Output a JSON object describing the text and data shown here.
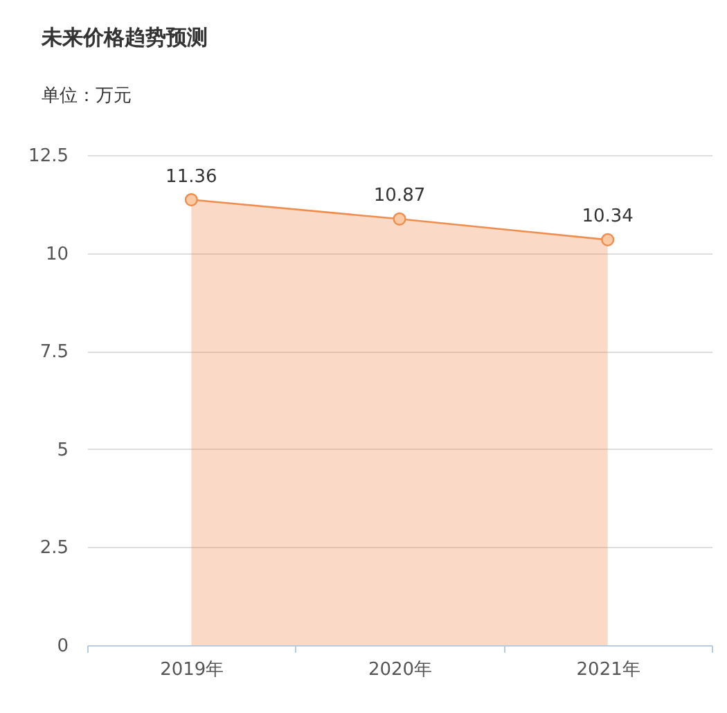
{
  "chart_data": {
    "type": "area",
    "title": "未来价格趋势预测",
    "subtitle": "单位：万元",
    "categories": [
      "2019年",
      "2020年",
      "2021年"
    ],
    "series": [
      {
        "color": "#ef8d4f",
        "values": [
          11.36,
          10.87,
          10.34
        ]
      }
    ],
    "ylim": [
      0,
      12.5
    ],
    "yticks": [
      0,
      2.5,
      5,
      7.5,
      10,
      12.5
    ],
    "grid": "y",
    "marker": "circle",
    "line_style": "solid",
    "data_labels": true
  }
}
